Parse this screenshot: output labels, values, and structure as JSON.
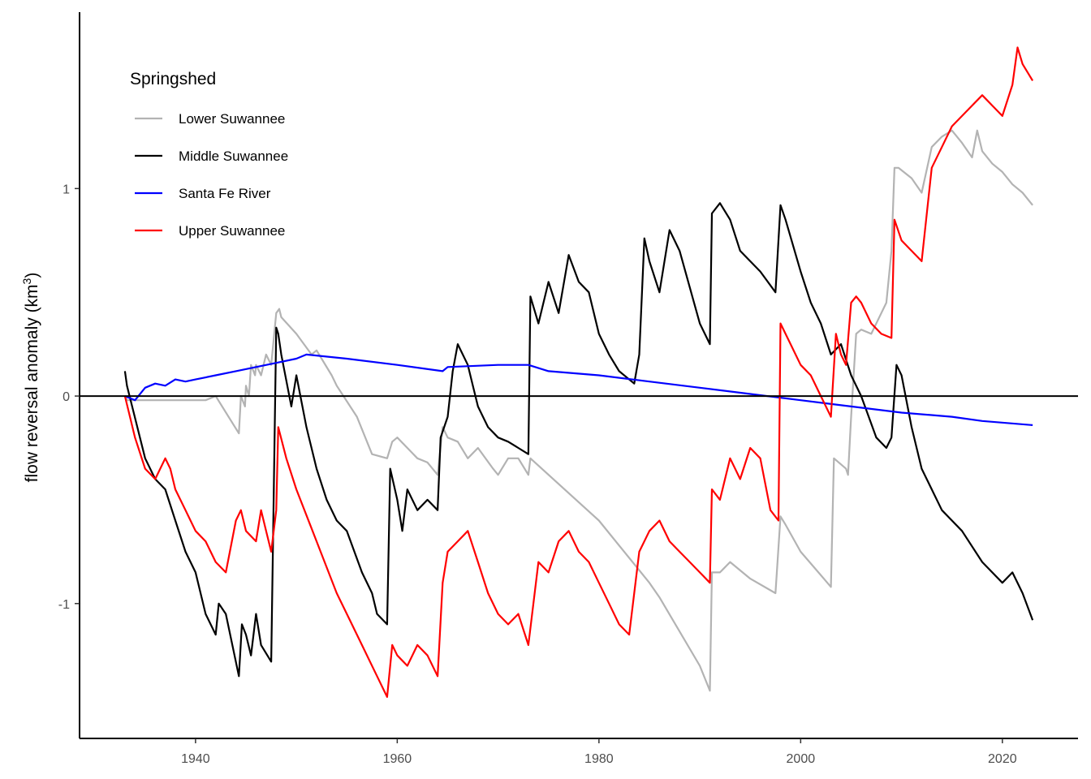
{
  "chart_data": {
    "type": "line",
    "title": "",
    "xlabel": "",
    "ylabel": "flow reversal anomaly (km",
    "ylabel_superscript": "3",
    "ylabel_suffix": ")",
    "xlim": [
      1928.5,
      2027.5
    ],
    "ylim": [
      -1.65,
      1.85
    ],
    "x_ticks": [
      1940,
      1960,
      1980,
      2000,
      2020
    ],
    "x_tick_labels": [
      "1940",
      "1960",
      "1980",
      "2000",
      "2020"
    ],
    "y_ticks": [
      -1,
      0,
      1
    ],
    "y_tick_labels": [
      "-1",
      "0",
      "1"
    ],
    "zero_line": 0,
    "grid": false,
    "legend": {
      "title": "Springshed",
      "placement": "top-left"
    },
    "series": [
      {
        "name": "Lower Suwannee",
        "color": "#b3b3b3",
        "x": [
          1933.0,
          1933.2,
          1941.0,
          1942.0,
          1944.3,
          1944.5,
          1944.9,
          1945.0,
          1945.3,
          1945.5,
          1945.9,
          1946.0,
          1946.5,
          1947.0,
          1947.5,
          1948.0,
          1948.3,
          1948.5,
          1950.0,
          1951.5,
          1952.0,
          1953.5,
          1954.0,
          1956.0,
          1957.5,
          1959.0,
          1959.5,
          1960.0,
          1962.0,
          1963.0,
          1964.0,
          1964.5,
          1965.0,
          1966.0,
          1967.0,
          1968.0,
          1969.5,
          1970.0,
          1971.0,
          1972.0,
          1973.0,
          1973.2,
          1980.0,
          1985.0,
          1986.0,
          1990.0,
          1991.0,
          1991.2,
          1992.0,
          1993.0,
          1995.0,
          1997.5,
          1998.0,
          1998.5,
          2000.0,
          2003.0,
          2003.3,
          2004.5,
          2004.7,
          2005.0,
          2005.5,
          2006.0,
          2007.0,
          2008.0,
          2008.5,
          2009.0,
          2009.3,
          2009.7,
          2011.0,
          2012.0,
          2013.0,
          2014.0,
          2015.0,
          2016.0,
          2017.0,
          2017.5,
          2018.0,
          2019.0,
          2020.0,
          2021.0,
          2022.0,
          2023.0
        ],
        "y": [
          0.0,
          -0.02,
          -0.02,
          0.0,
          -0.18,
          0.0,
          -0.05,
          0.05,
          0.0,
          0.15,
          0.1,
          0.15,
          0.1,
          0.2,
          0.15,
          0.4,
          0.42,
          0.38,
          0.3,
          0.2,
          0.22,
          0.1,
          0.05,
          -0.1,
          -0.28,
          -0.3,
          -0.22,
          -0.2,
          -0.3,
          -0.32,
          -0.38,
          -0.15,
          -0.2,
          -0.22,
          -0.3,
          -0.25,
          -0.35,
          -0.38,
          -0.3,
          -0.3,
          -0.38,
          -0.3,
          -0.6,
          -0.9,
          -0.97,
          -1.3,
          -1.42,
          -0.85,
          -0.85,
          -0.8,
          -0.88,
          -0.95,
          -0.58,
          -0.62,
          -0.75,
          -0.92,
          -0.3,
          -0.35,
          -0.38,
          -0.1,
          0.3,
          0.32,
          0.3,
          0.4,
          0.45,
          0.7,
          1.1,
          1.1,
          1.05,
          0.98,
          1.2,
          1.25,
          1.28,
          1.22,
          1.15,
          1.28,
          1.18,
          1.12,
          1.08,
          1.02,
          0.98,
          0.92
        ]
      },
      {
        "name": "Middle Suwannee",
        "color": "#000000",
        "x": [
          1933.0,
          1933.2,
          1935.0,
          1936.0,
          1937.0,
          1938.0,
          1939.0,
          1940.0,
          1941.0,
          1942.0,
          1942.3,
          1943.0,
          1944.3,
          1944.6,
          1945.0,
          1945.5,
          1946.0,
          1946.5,
          1947.5,
          1948.0,
          1948.2,
          1948.5,
          1949.5,
          1950.0,
          1951.0,
          1952.0,
          1953.0,
          1954.0,
          1955.0,
          1956.5,
          1957.5,
          1958.0,
          1959.0,
          1959.3,
          1960.0,
          1960.5,
          1961.0,
          1962.0,
          1963.0,
          1964.0,
          1964.3,
          1965.0,
          1965.5,
          1966.0,
          1967.0,
          1967.5,
          1968.0,
          1969.0,
          1970.0,
          1971.0,
          1972.0,
          1973.0,
          1973.2,
          1974.0,
          1975.0,
          1976.0,
          1977.0,
          1978.0,
          1979.0,
          1980.0,
          1981.0,
          1982.0,
          1983.5,
          1984.0,
          1984.5,
          1985.0,
          1986.0,
          1987.0,
          1988.0,
          1990.0,
          1991.0,
          1991.2,
          1992.0,
          1993.0,
          1994.0,
          1995.0,
          1996.0,
          1997.5,
          1998.0,
          1998.5,
          2000.0,
          2001.0,
          2002.0,
          2003.0,
          2004.0,
          2005.0,
          2006.0,
          2007.5,
          2008.5,
          2009.0,
          2009.5,
          2010.0,
          2011.0,
          2012.0,
          2014.0,
          2016.0,
          2018.0,
          2020.0,
          2021.0,
          2022.0,
          2023.0
        ],
        "y": [
          0.12,
          0.05,
          -0.3,
          -0.4,
          -0.45,
          -0.6,
          -0.75,
          -0.85,
          -1.05,
          -1.15,
          -1.0,
          -1.05,
          -1.35,
          -1.1,
          -1.15,
          -1.25,
          -1.05,
          -1.2,
          -1.28,
          0.33,
          0.3,
          0.2,
          -0.05,
          0.1,
          -0.15,
          -0.35,
          -0.5,
          -0.6,
          -0.65,
          -0.85,
          -0.95,
          -1.05,
          -1.1,
          -0.35,
          -0.5,
          -0.65,
          -0.45,
          -0.55,
          -0.5,
          -0.55,
          -0.2,
          -0.1,
          0.12,
          0.25,
          0.15,
          0.05,
          -0.05,
          -0.15,
          -0.2,
          -0.22,
          -0.25,
          -0.28,
          0.48,
          0.35,
          0.55,
          0.4,
          0.68,
          0.55,
          0.5,
          0.3,
          0.2,
          0.12,
          0.06,
          0.2,
          0.76,
          0.65,
          0.5,
          0.8,
          0.7,
          0.35,
          0.25,
          0.88,
          0.93,
          0.85,
          0.7,
          0.65,
          0.6,
          0.5,
          0.92,
          0.85,
          0.6,
          0.45,
          0.35,
          0.2,
          0.25,
          0.1,
          0.0,
          -0.2,
          -0.25,
          -0.2,
          0.15,
          0.1,
          -0.15,
          -0.35,
          -0.55,
          -0.65,
          -0.8,
          -0.9,
          -0.85,
          -0.95,
          -1.08
        ]
      },
      {
        "name": "Santa Fe River",
        "color": "#0000ff",
        "x": [
          1933.0,
          1934.0,
          1935.0,
          1936.0,
          1937.0,
          1938.0,
          1939.0,
          1940.0,
          1942.0,
          1944.0,
          1946.0,
          1948.0,
          1950.0,
          1951.0,
          1955.0,
          1960.0,
          1964.5,
          1965.0,
          1970.0,
          1973.0,
          1975.0,
          1980.0,
          1985.0,
          1990.0,
          1995.0,
          2000.0,
          2005.0,
          2010.0,
          2015.0,
          2018.0,
          2023.0
        ],
        "y": [
          0.0,
          -0.02,
          0.04,
          0.06,
          0.05,
          0.08,
          0.07,
          0.08,
          0.1,
          0.12,
          0.14,
          0.16,
          0.18,
          0.2,
          0.18,
          0.15,
          0.12,
          0.14,
          0.15,
          0.15,
          0.12,
          0.1,
          0.07,
          0.04,
          0.01,
          -0.02,
          -0.05,
          -0.08,
          -0.1,
          -0.12,
          -0.14
        ]
      },
      {
        "name": "Upper Suwannee",
        "color": "#ff0000",
        "x": [
          1933.0,
          1934.0,
          1935.0,
          1936.0,
          1937.0,
          1937.5,
          1938.0,
          1939.0,
          1940.0,
          1941.0,
          1942.0,
          1943.0,
          1944.0,
          1944.5,
          1945.0,
          1946.0,
          1946.5,
          1947.0,
          1947.5,
          1948.0,
          1948.2,
          1949.0,
          1950.0,
          1952.0,
          1954.0,
          1956.0,
          1958.0,
          1959.0,
          1959.5,
          1960.0,
          1961.0,
          1962.0,
          1963.0,
          1964.0,
          1964.5,
          1965.0,
          1966.0,
          1967.0,
          1968.0,
          1969.0,
          1970.0,
          1971.0,
          1972.0,
          1973.0,
          1974.0,
          1975.0,
          1976.0,
          1977.0,
          1978.0,
          1979.0,
          1980.0,
          1981.0,
          1982.0,
          1983.0,
          1984.0,
          1985.0,
          1986.0,
          1987.0,
          1988.0,
          1989.0,
          1990.0,
          1991.0,
          1991.2,
          1992.0,
          1993.0,
          1994.0,
          1995.0,
          1996.0,
          1997.0,
          1997.8,
          1998.0,
          1999.0,
          2000.0,
          2001.0,
          2002.0,
          2003.0,
          2003.5,
          2004.0,
          2004.5,
          2005.0,
          2005.5,
          2006.0,
          2007.0,
          2008.0,
          2009.0,
          2009.3,
          2010.0,
          2011.0,
          2012.0,
          2013.0,
          2014.0,
          2015.0,
          2016.0,
          2017.0,
          2018.0,
          2019.0,
          2020.0,
          2021.0,
          2021.5,
          2022.0,
          2023.0
        ],
        "y": [
          0.0,
          -0.2,
          -0.35,
          -0.4,
          -0.3,
          -0.35,
          -0.45,
          -0.55,
          -0.65,
          -0.7,
          -0.8,
          -0.85,
          -0.6,
          -0.55,
          -0.65,
          -0.7,
          -0.55,
          -0.65,
          -0.75,
          -0.55,
          -0.15,
          -0.3,
          -0.45,
          -0.7,
          -0.95,
          -1.15,
          -1.35,
          -1.45,
          -1.2,
          -1.25,
          -1.3,
          -1.2,
          -1.25,
          -1.35,
          -0.9,
          -0.75,
          -0.7,
          -0.65,
          -0.8,
          -0.95,
          -1.05,
          -1.1,
          -1.05,
          -1.2,
          -0.8,
          -0.85,
          -0.7,
          -0.65,
          -0.75,
          -0.8,
          -0.9,
          -1.0,
          -1.1,
          -1.15,
          -0.75,
          -0.65,
          -0.6,
          -0.7,
          -0.75,
          -0.8,
          -0.85,
          -0.9,
          -0.45,
          -0.5,
          -0.3,
          -0.4,
          -0.25,
          -0.3,
          -0.55,
          -0.6,
          0.35,
          0.25,
          0.15,
          0.1,
          0.0,
          -0.1,
          0.3,
          0.2,
          0.15,
          0.45,
          0.48,
          0.45,
          0.35,
          0.3,
          0.28,
          0.85,
          0.75,
          0.7,
          0.65,
          1.1,
          1.2,
          1.3,
          1.35,
          1.4,
          1.45,
          1.4,
          1.35,
          1.5,
          1.68,
          1.6,
          1.52
        ]
      }
    ]
  }
}
